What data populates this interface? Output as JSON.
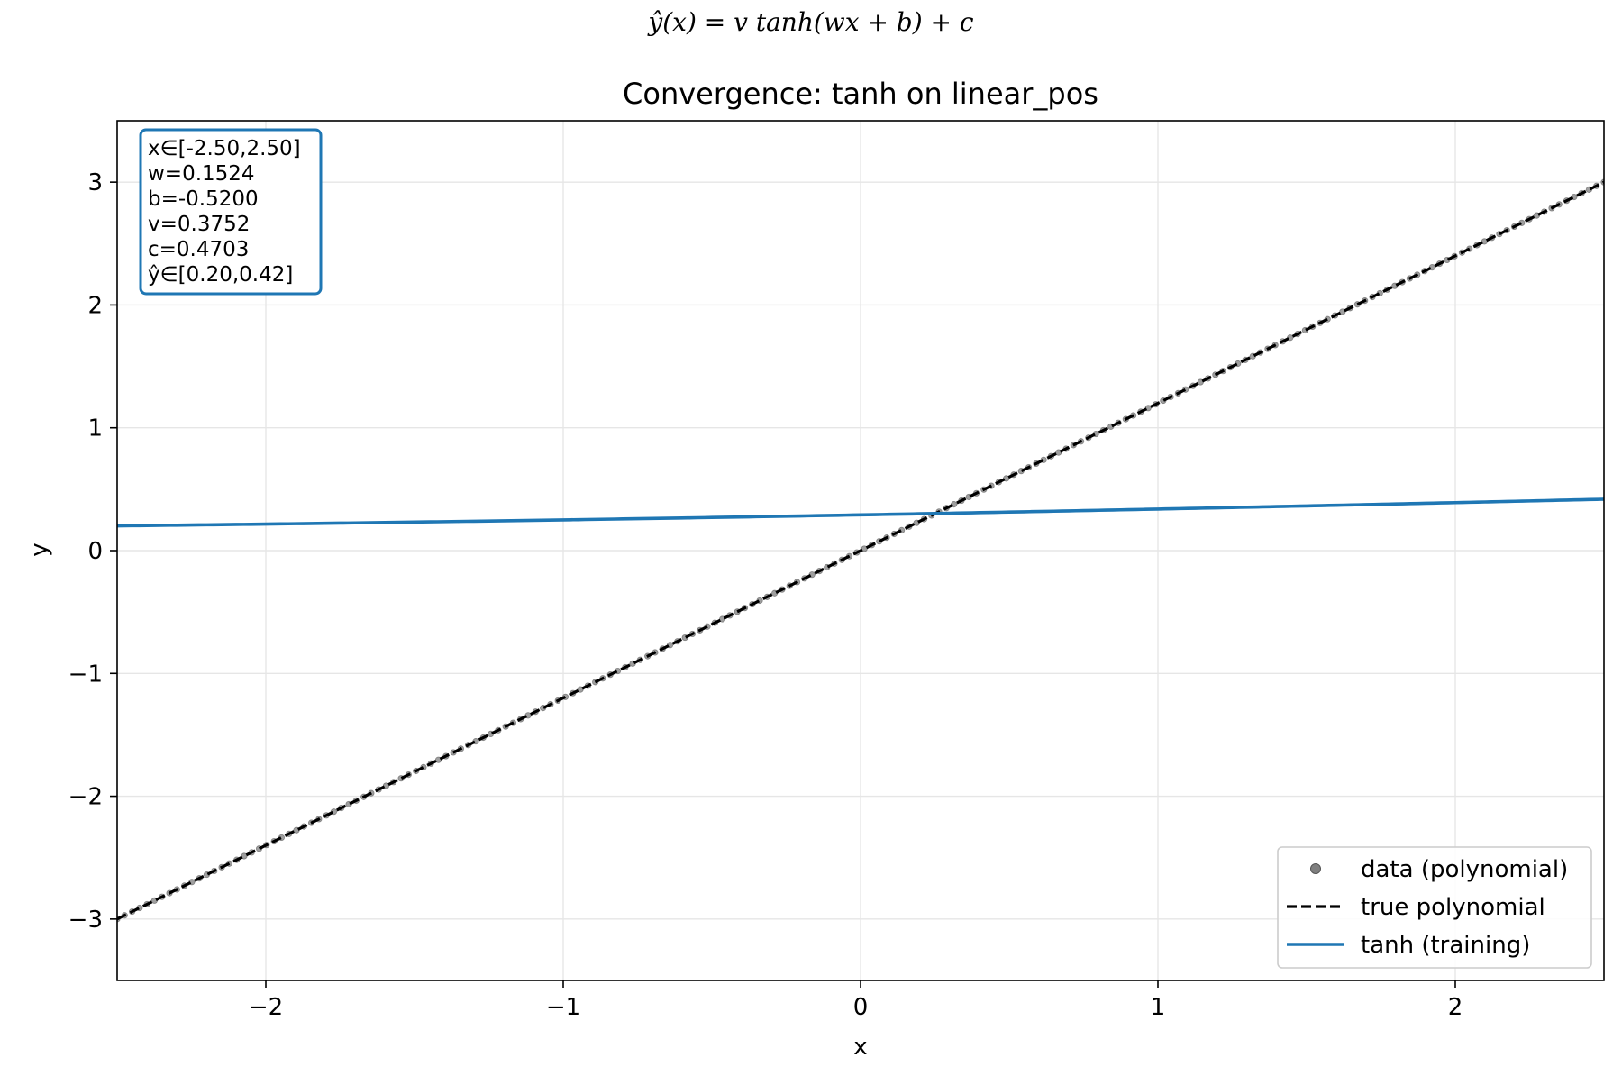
{
  "suptitle": "ŷ(x) = v tanh(wx + b) + c",
  "colors": {
    "model": "#1f77b4",
    "truth": "#000000",
    "data": "#7f7f7f",
    "grid": "#e6e6e6",
    "infobox_border": "#1f77b4"
  },
  "info_box": {
    "lines": [
      "x∈[-2.50,2.50]",
      "w=0.1524",
      "b=-0.5200",
      "v=0.3752",
      "c=0.4703",
      "ŷ∈[0.20,0.42]"
    ]
  },
  "chart_data": {
    "type": "line",
    "title": "Convergence: tanh on linear_pos",
    "xlabel": "x",
    "ylabel": "y",
    "xlim": [
      -2.5,
      2.5
    ],
    "ylim": [
      -3.5,
      3.5
    ],
    "xticks": [
      -2,
      -1,
      0,
      1,
      2
    ],
    "xtick_labels": [
      "−2",
      "−1",
      "0",
      "1",
      "2"
    ],
    "yticks": [
      -3,
      -2,
      -1,
      0,
      1,
      2,
      3
    ],
    "ytick_labels": [
      "−3",
      "−2",
      "−1",
      "0",
      "1",
      "2",
      "3"
    ],
    "grid": true,
    "legend_position": "lower-right",
    "series": [
      {
        "name": "data (polynomial)",
        "kind": "scatter",
        "x_range": [
          -2.5,
          2.5
        ],
        "n_points": 200,
        "slope": 1.2,
        "intercept": 0.0
      },
      {
        "name": "true polynomial",
        "kind": "line",
        "style": "dashed",
        "x": [
          -2.5,
          2.5
        ],
        "y": [
          -3.0,
          3.0
        ]
      },
      {
        "name": "tanh (training)",
        "kind": "line",
        "style": "solid",
        "function": "tanh",
        "w": 0.1524,
        "b": -0.52,
        "v": 0.3752,
        "c": 0.4703
      }
    ]
  }
}
